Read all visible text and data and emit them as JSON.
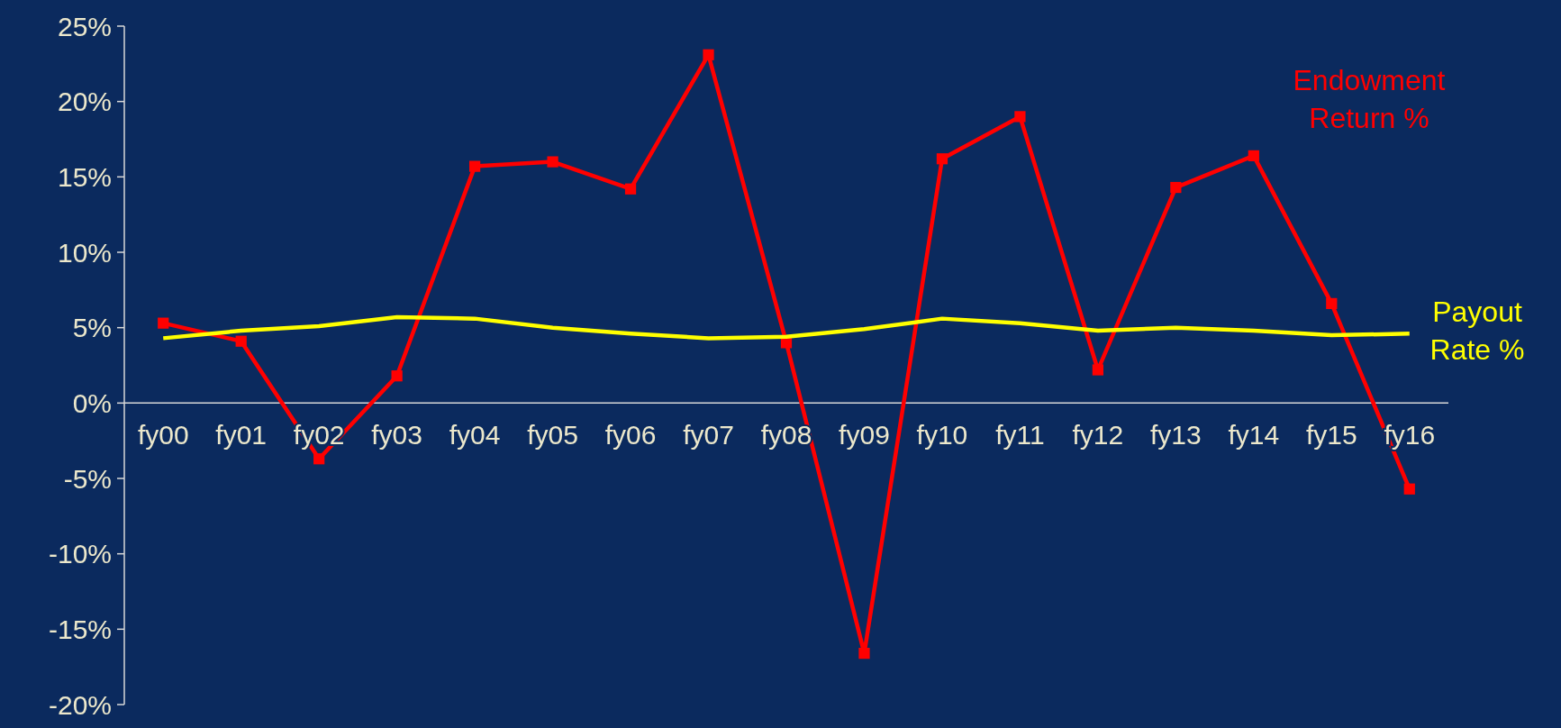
{
  "chart_data": {
    "type": "line",
    "categories": [
      "fy00",
      "fy01",
      "fy02",
      "fy03",
      "fy04",
      "fy05",
      "fy06",
      "fy07",
      "fy08",
      "fy09",
      "fy10",
      "fy11",
      "fy12",
      "fy13",
      "fy14",
      "fy15",
      "fy16"
    ],
    "series": [
      {
        "name": "Endowment Return %",
        "color": "#ff0000",
        "marker": "square",
        "values": [
          5.3,
          4.1,
          -3.7,
          1.8,
          15.7,
          16.0,
          14.2,
          23.1,
          4.0,
          -16.6,
          16.2,
          19.0,
          2.2,
          14.3,
          16.4,
          6.6,
          -5.7
        ]
      },
      {
        "name": "Payout Rate %",
        "color": "#ffff00",
        "marker": "none",
        "values": [
          4.3,
          4.8,
          5.1,
          5.7,
          5.6,
          5.0,
          4.6,
          4.3,
          4.4,
          4.9,
          5.6,
          5.3,
          4.8,
          5.0,
          4.8,
          4.5,
          4.6
        ]
      }
    ],
    "ylim": [
      -20,
      25
    ],
    "yticks": [
      {
        "value": -20,
        "label": "-20%"
      },
      {
        "value": -15,
        "label": "-15%"
      },
      {
        "value": -10,
        "label": "-10%"
      },
      {
        "value": -5,
        "label": "-5%"
      },
      {
        "value": 0,
        "label": "0%"
      },
      {
        "value": 5,
        "label": "5%"
      },
      {
        "value": 10,
        "label": "10%"
      },
      {
        "value": 15,
        "label": "15%"
      },
      {
        "value": 20,
        "label": "20%"
      },
      {
        "value": 25,
        "label": "25%"
      }
    ],
    "grid": false,
    "line_style": "solid"
  }
}
